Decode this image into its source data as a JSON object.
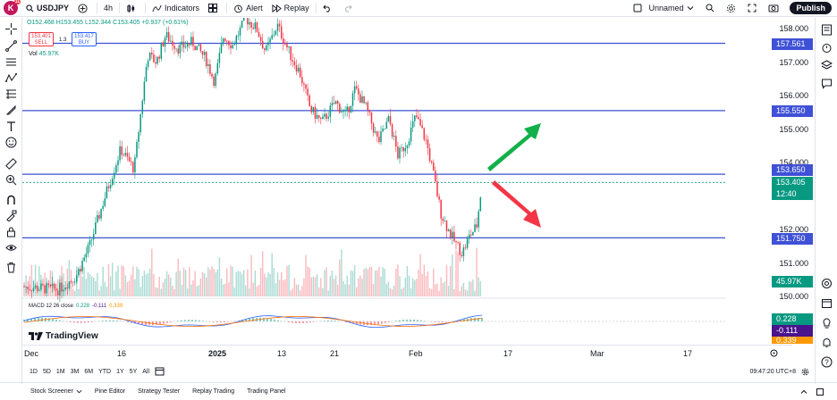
{
  "topbar": {
    "logo_letter": "K",
    "logo_badge": "11",
    "symbol": "USDJPY",
    "interval": "4h",
    "indicators_label": "Indicators",
    "alert_label": "Alert",
    "replay_label": "Replay",
    "layout_name": "Unnamed",
    "publish_label": "Publish"
  },
  "legend": {
    "ohlc": "O152.468 H153.455 L152.344 C153.405 +0.937 (+0.61%)",
    "sell_price": "153.401",
    "sell_label": "SELL",
    "spread": "1.3",
    "buy_price": "153.417",
    "buy_label": "BUY",
    "vol_label": "Vol",
    "vol_value": "45.97K",
    "macd_label": "MACD 12 26 close",
    "macd_v1": "0.228",
    "macd_v2": "-0.111",
    "macd_v3": "0.339",
    "brand": "TradingView"
  },
  "price_axis": {
    "ticks": [
      "158.000",
      "157.000",
      "156.000",
      "155.000",
      "154.000",
      "152.000",
      "151.000",
      "150.000"
    ],
    "labels": [
      {
        "text": "157.561",
        "color": "#3f51d6"
      },
      {
        "text": "155.550",
        "color": "#3f51d6"
      },
      {
        "text": "153.650",
        "color": "#3f51d6"
      },
      {
        "text": "153.405",
        "color": "#089981"
      },
      {
        "text": "12:40",
        "color": "#089981"
      },
      {
        "text": "151.750",
        "color": "#3f51d6"
      },
      {
        "text": "45.97K",
        "color": "#089981"
      },
      {
        "text": "0.228",
        "color": "#089981"
      },
      {
        "text": "-0.111",
        "color": "#4a148c"
      },
      {
        "text": "0.339",
        "color": "#ff9800"
      }
    ]
  },
  "time_axis": {
    "ticks": [
      "Dec",
      "16",
      "2025",
      "13",
      "21",
      "Feb",
      "17",
      "Mar",
      "17"
    ]
  },
  "range_buttons": [
    "1D",
    "5D",
    "1M",
    "3M",
    "6M",
    "YTD",
    "1Y",
    "5Y",
    "All"
  ],
  "clock": "09:47:20 UTC+8",
  "bottom_tabs": [
    "Stock Screener",
    "Pine Editor",
    "Strategy Tester",
    "Replay Trading",
    "Trading Panel"
  ],
  "chart_data": {
    "type": "candlestick",
    "symbol": "USDJPY",
    "interval": "4h",
    "horizontal_levels": [
      157.561,
      155.55,
      153.65,
      151.75
    ],
    "last_price": 153.405,
    "ylim": [
      149.9,
      158.4
    ],
    "annotations": [
      "green up arrow",
      "red down arrow"
    ],
    "macd": {
      "macd": 0.228,
      "signal": -0.111,
      "hist": 0.339
    }
  },
  "colors": {
    "up": "#089981",
    "down": "#f23645",
    "level_line": "#3f51d6",
    "arrow_up": "#12b04a",
    "arrow_down": "#f23645"
  }
}
